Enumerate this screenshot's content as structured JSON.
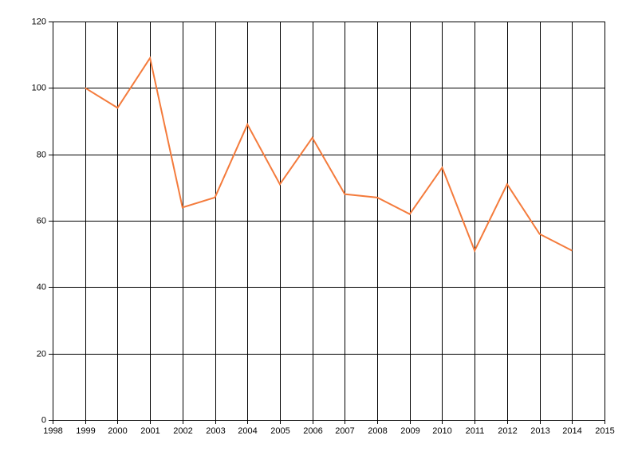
{
  "chart_data": {
    "type": "line",
    "x": [
      1999,
      2000,
      2001,
      2002,
      2003,
      2004,
      2005,
      2006,
      2007,
      2008,
      2009,
      2010,
      2011,
      2012,
      2013,
      2014
    ],
    "values": [
      100,
      94,
      109,
      64,
      67,
      89,
      71,
      85,
      68,
      67,
      62,
      76,
      51,
      71,
      56,
      51
    ],
    "color": "#f47b3c",
    "xlim": [
      1998,
      2015
    ],
    "xticks": [
      1998,
      1999,
      2000,
      2001,
      2002,
      2003,
      2004,
      2005,
      2006,
      2007,
      2008,
      2009,
      2010,
      2011,
      2012,
      2013,
      2014,
      2015
    ],
    "ylim": [
      0,
      120
    ],
    "yticks": [
      0,
      20,
      40,
      60,
      80,
      100,
      120
    ],
    "grid": true
  }
}
